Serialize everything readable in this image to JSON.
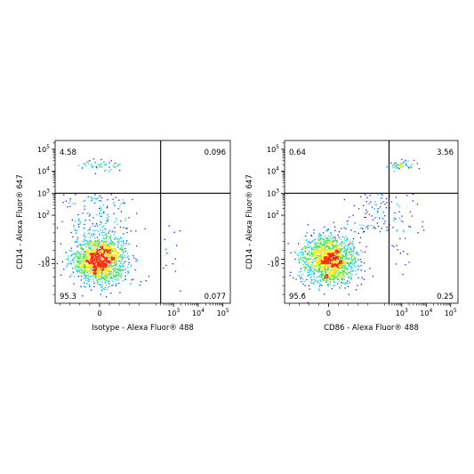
{
  "chart_data": [
    {
      "type": "scatter",
      "style": "density-dot-plot",
      "x_scale": "biexponential",
      "y_scale": "biexponential",
      "xlabel": "Isotype - Alexa Fluor® 488",
      "ylabel": "CD14 - Alexa Fluor® 647",
      "x_ticks": [
        {
          "value": 0,
          "base": "0",
          "exp": ""
        },
        {
          "value": 1000,
          "base": "10",
          "exp": "3"
        },
        {
          "value": 10000,
          "base": "10",
          "exp": "4"
        },
        {
          "value": 100000,
          "base": "10",
          "exp": "5"
        }
      ],
      "y_ticks": [
        {
          "value": 100000,
          "base": "10",
          "exp": "5"
        },
        {
          "value": 10000,
          "base": "10",
          "exp": "4"
        },
        {
          "value": 1000,
          "base": "10",
          "exp": "3"
        },
        {
          "value": 100,
          "base": "10",
          "exp": "2"
        },
        {
          "value": 0,
          "base": "0",
          "exp": ""
        },
        {
          "value": -10,
          "base": "-10",
          "exp": ""
        }
      ],
      "quadrant_gate": {
        "x": 300,
        "y": 1000
      },
      "quadrant_percentages": {
        "upper_left": "4.58",
        "upper_right": "0.096",
        "lower_left": "95.3",
        "lower_right": "0.077"
      },
      "populations": [
        {
          "x": 0,
          "y": 0,
          "count": 1450
        },
        {
          "x": 0,
          "y": 20000,
          "count": 55
        },
        {
          "x": 0,
          "y": 800,
          "count": 140
        }
      ],
      "grid": false,
      "legend": "none"
    },
    {
      "type": "scatter",
      "style": "density-dot-plot",
      "x_scale": "biexponential",
      "y_scale": "biexponential",
      "xlabel": "CD86 - Alexa Fluor® 488",
      "ylabel": "CD14 - Alexa Fluor® 647",
      "x_ticks": [
        {
          "value": 0,
          "base": "0",
          "exp": ""
        },
        {
          "value": 1000,
          "base": "10",
          "exp": "3"
        },
        {
          "value": 10000,
          "base": "10",
          "exp": "4"
        },
        {
          "value": 100000,
          "base": "10",
          "exp": "5"
        }
      ],
      "y_ticks": [
        {
          "value": 100000,
          "base": "10",
          "exp": "5"
        },
        {
          "value": 10000,
          "base": "10",
          "exp": "4"
        },
        {
          "value": 1000,
          "base": "10",
          "exp": "3"
        },
        {
          "value": 100,
          "base": "10",
          "exp": "2"
        },
        {
          "value": 0,
          "base": "0",
          "exp": ""
        },
        {
          "value": -10,
          "base": "-10",
          "exp": ""
        }
      ],
      "quadrant_gate": {
        "x": 300,
        "y": 1000
      },
      "quadrant_percentages": {
        "upper_left": "0.64",
        "upper_right": "3.56",
        "lower_left": "95.6",
        "lower_right": "0.25"
      },
      "populations": [
        {
          "x": 0,
          "y": 0,
          "count": 1450
        },
        {
          "x": 800,
          "y": 20000,
          "count": 55
        },
        {
          "x": 100,
          "y": 800,
          "count": 120
        }
      ],
      "grid": false,
      "legend": "none"
    }
  ],
  "colors": {
    "density_low": "#1a1aff",
    "density_mid_low": "#00c8ff",
    "density_mid": "#39e639",
    "density_mid_high": "#ffe600",
    "density_high": "#ff2200",
    "gate_line": "#000000",
    "axis": "#000000"
  }
}
